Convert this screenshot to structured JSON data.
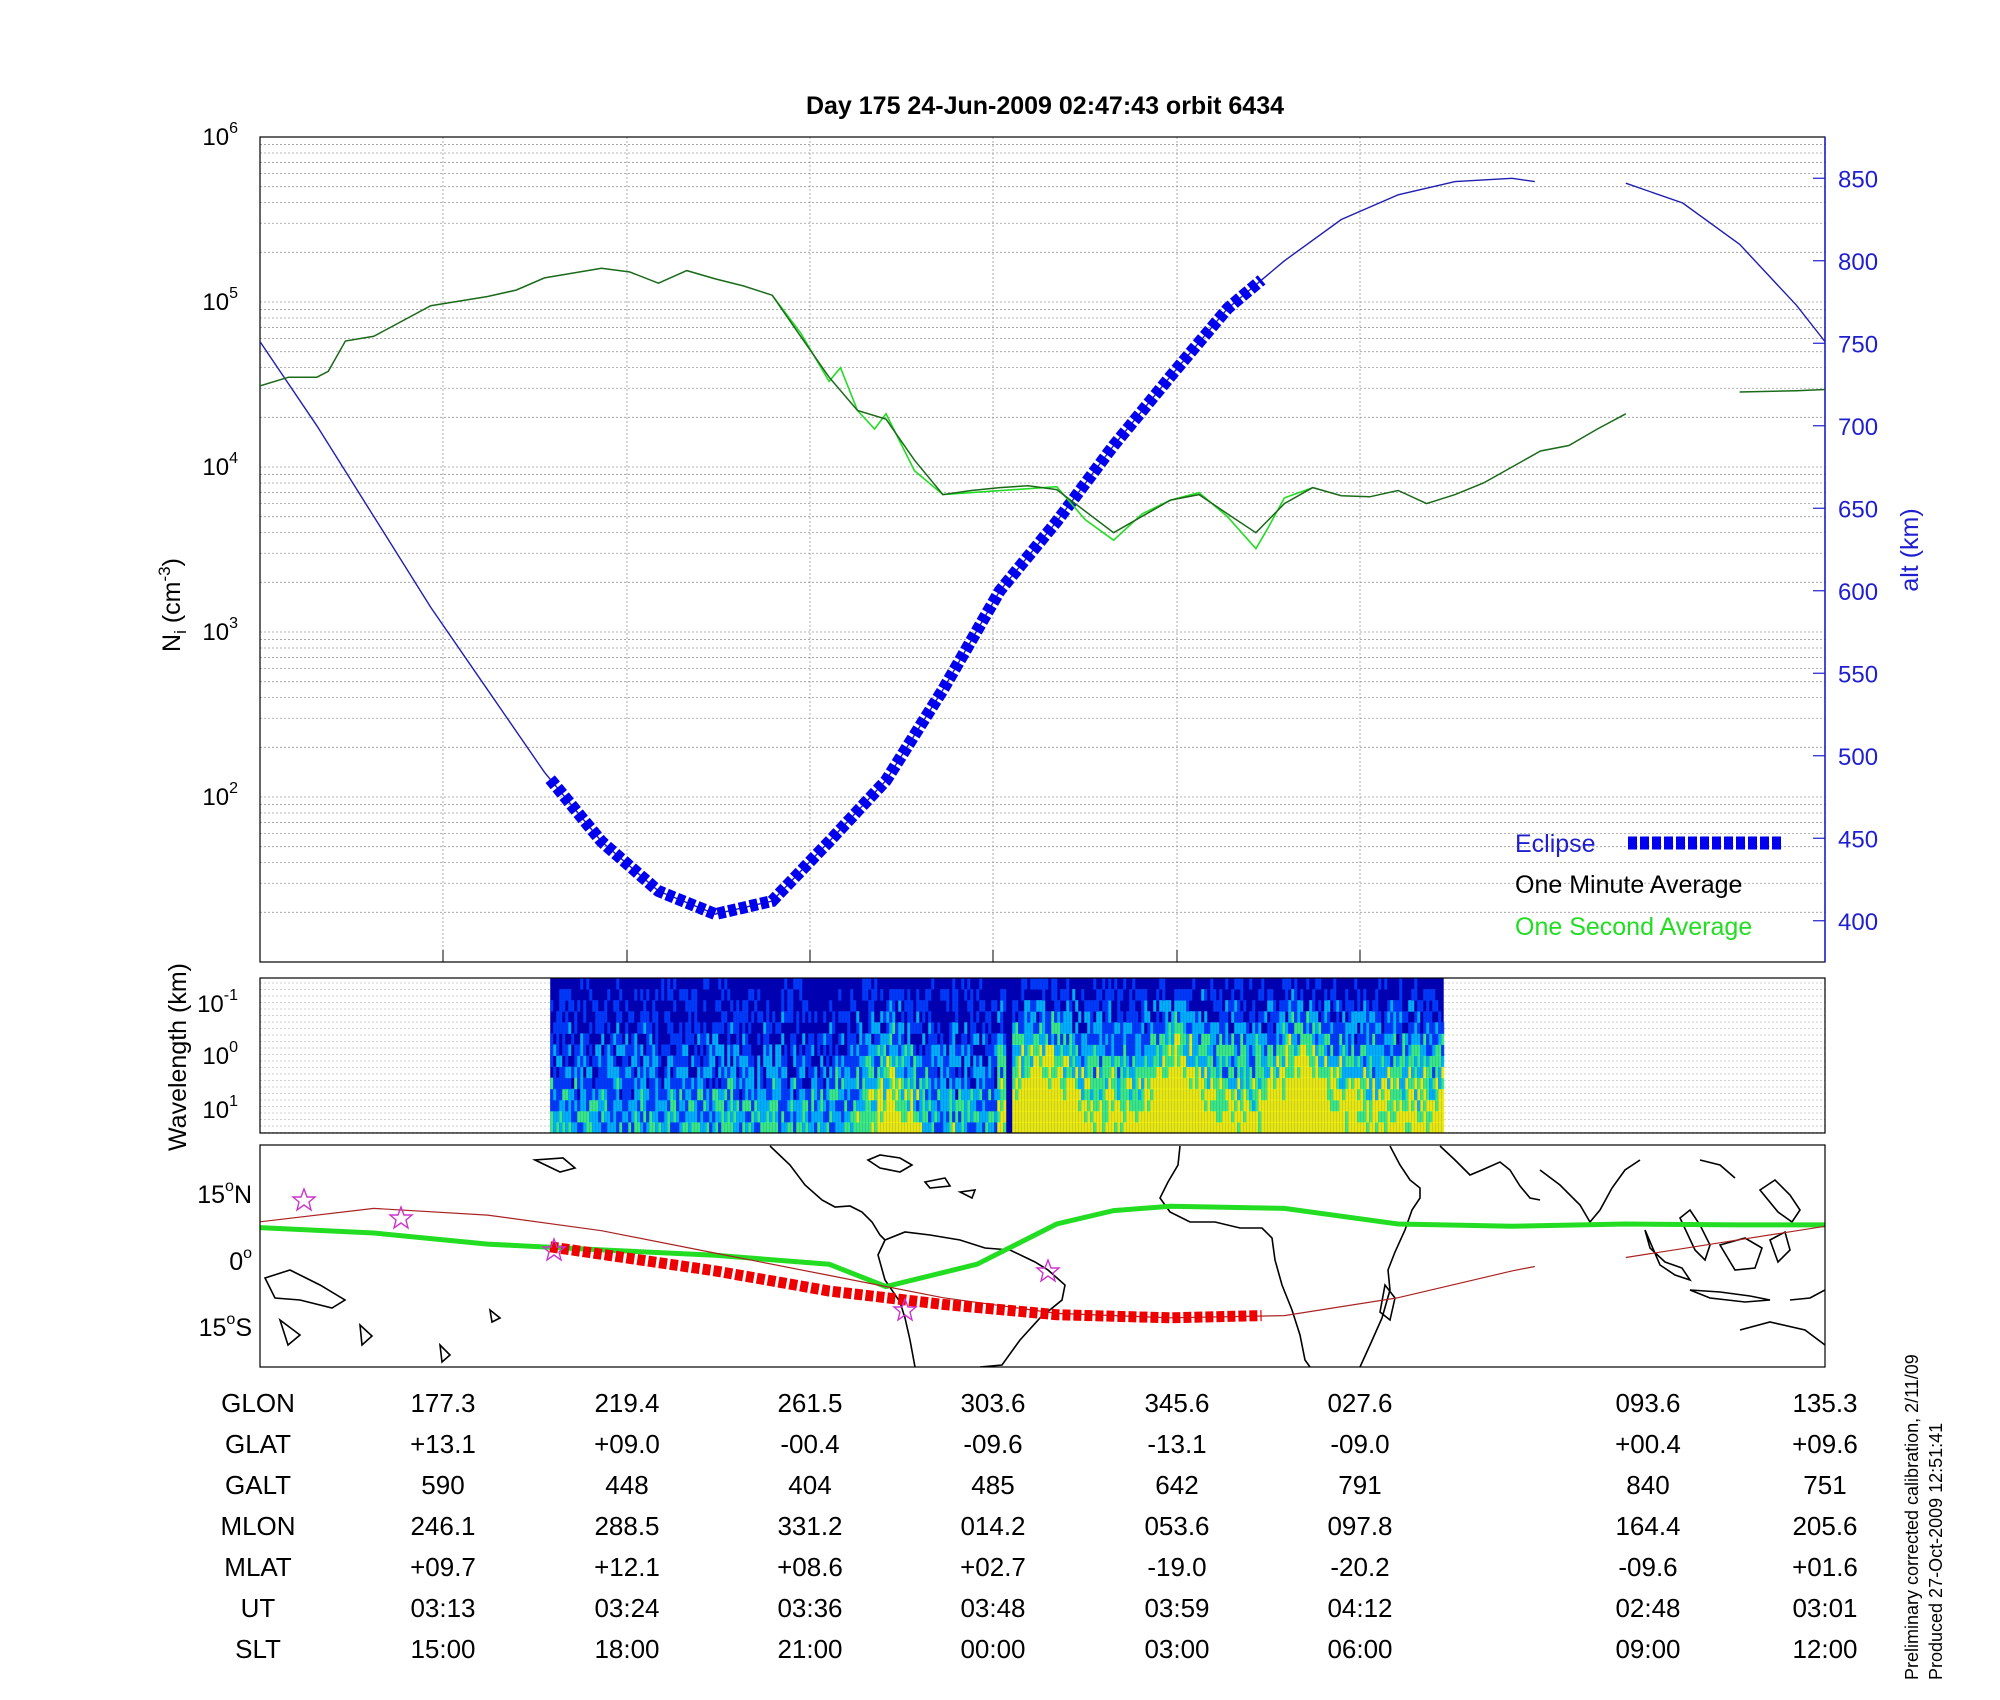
{
  "title": "Day 175  24-Jun-2009 02:47:43   orbit 6434",
  "side_note": [
    "Preliminary corrected calibration, 2/11/09",
    "Produced 27-Oct-2009 12:51:41"
  ],
  "chart_data": [
    {
      "type": "line",
      "panel": "top",
      "y_left_label": "N",
      "y_left_label_sub": "i",
      "y_left_label_unit": "(cm",
      "y_left_label_exp": "-3",
      "y_left_label_close": ")",
      "y_left_scale": "log",
      "y_left_range": [
        10,
        1000000
      ],
      "y_left_ticks": [
        {
          "base": "10",
          "exp": "2",
          "v": 100
        },
        {
          "base": "10",
          "exp": "3",
          "v": 1000
        },
        {
          "base": "10",
          "exp": "4",
          "v": 10000
        },
        {
          "base": "10",
          "exp": "5",
          "v": 100000
        },
        {
          "base": "10",
          "exp": "6",
          "v": 1000000
        }
      ],
      "y_right_label": "alt (km)",
      "y_right_range": [
        375,
        875
      ],
      "y_right_ticks": [
        400,
        450,
        500,
        550,
        600,
        650,
        700,
        750,
        800,
        850
      ],
      "grid": true,
      "legend": {
        "position": "bottom-right",
        "entries": [
          "Eclipse",
          "One Minute Average",
          "One Second Average"
        ]
      },
      "series": [
        {
          "name": "One Minute Average",
          "color": "#1a6a1a",
          "x": [
            0,
            0.25,
            0.5,
            0.6,
            0.75,
            1.0,
            1.5,
            2.0,
            2.25,
            2.5,
            3.0,
            3.25,
            3.5,
            3.75,
            4.0,
            4.25,
            4.5,
            4.75,
            5.0,
            5.25,
            5.5,
            5.75,
            6.0,
            6.25,
            6.5,
            6.75,
            7.0,
            7.5,
            8.0,
            8.25,
            8.5,
            8.75,
            9.0,
            9.25,
            9.5,
            9.75,
            10.0,
            10.25,
            10.5,
            10.75,
            11.0,
            11.25,
            11.5,
            11.75,
            12.0,
            12.5,
            13.0,
            13.5,
            13.75
          ],
          "y": [
            31000,
            35000,
            35000,
            38000,
            58000,
            62000,
            95000,
            108000,
            118000,
            140000,
            160000,
            152000,
            130000,
            155000,
            138000,
            125000,
            110000,
            62000,
            35000,
            22000,
            19500,
            11000,
            6800,
            7200,
            7500,
            7700,
            7300,
            4000,
            6300,
            6800,
            5200,
            4000,
            6000,
            7500,
            6700,
            6600,
            7200,
            6000,
            6800,
            8000,
            10000,
            12500,
            13500,
            17000,
            21000,
            null,
            28500,
            29000,
            29500
          ]
        },
        {
          "name": "One Second Average",
          "color": "#22dd22",
          "x": [
            4.5,
            4.75,
            5.0,
            5.1,
            5.25,
            5.4,
            5.5,
            5.75,
            6.0,
            7.0,
            7.25,
            7.5,
            7.75,
            8.0,
            8.25,
            8.5,
            8.75,
            8.85,
            9.0,
            9.25
          ],
          "y": [
            110000,
            65000,
            33000,
            40000,
            22000,
            17000,
            21000,
            9500,
            6800,
            7600,
            4800,
            3600,
            5200,
            6300,
            7000,
            5000,
            3200,
            4200,
            6500,
            7500
          ]
        },
        {
          "name": "alt",
          "axis": "right",
          "color": "#1f1fb0",
          "x": [
            0,
            0.5,
            1,
            1.5,
            2,
            2.5,
            3,
            3.5,
            4,
            4.5,
            5,
            5.5,
            6,
            6.5,
            7,
            7.5,
            8,
            8.5,
            9,
            9.5,
            10,
            10.5,
            11,
            11.2,
            null,
            12.0,
            12.5,
            13.0,
            13.5,
            13.75
          ],
          "y": [
            751,
            700,
            645,
            590,
            540,
            490,
            448,
            418,
            404,
            412,
            448,
            485,
            540,
            600,
            642,
            688,
            730,
            771,
            800,
            825,
            840,
            848,
            850,
            848,
            null,
            847,
            835,
            810,
            773,
            751
          ]
        },
        {
          "name": "Eclipse",
          "axis": "right",
          "color": "#0000ee",
          "x_range": [
            2.55,
            8.8
          ]
        }
      ]
    },
    {
      "type": "heatmap",
      "panel": "middle",
      "ylabel": "Wavelength (km)",
      "y_ticks": [
        {
          "base": "10",
          "exp": "-1"
        },
        {
          "base": "10",
          "exp": "0"
        },
        {
          "base": "10",
          "exp": "1"
        }
      ],
      "x_range": [
        2.55,
        10.4
      ],
      "colormap": [
        "#0000b0",
        "#0040ff",
        "#00c0ff",
        "#40ff80",
        "#ffff00"
      ]
    },
    {
      "type": "map",
      "panel": "bottom",
      "y_ticks": [
        {
          "deg": "15",
          "hemi": "N"
        },
        {
          "deg": "0",
          "hemi": ""
        },
        {
          "deg": "15",
          "hemi": "S"
        }
      ],
      "series": [
        {
          "name": "geomagnetic track",
          "color": "#22dd22"
        },
        {
          "name": "orbit track",
          "color": "#aa2222"
        },
        {
          "name": "eclipse track",
          "color": "#ee0000"
        }
      ]
    }
  ],
  "table": {
    "rows": [
      {
        "label": "GLON",
        "values": [
          "177.3",
          "219.4",
          "261.5",
          "303.6",
          "345.6",
          "027.6",
          "093.6",
          "135.3"
        ]
      },
      {
        "label": "GLAT",
        "values": [
          "+13.1",
          "+09.0",
          "-00.4",
          "-09.6",
          "-13.1",
          "-09.0",
          "+00.4",
          "+09.6"
        ]
      },
      {
        "label": "GALT",
        "values": [
          "590",
          "448",
          "404",
          "485",
          "642",
          "791",
          "840",
          "751"
        ]
      },
      {
        "label": "MLON",
        "values": [
          "246.1",
          "288.5",
          "331.2",
          "014.2",
          "053.6",
          "097.8",
          "164.4",
          "205.6"
        ]
      },
      {
        "label": "MLAT",
        "values": [
          "+09.7",
          "+12.1",
          "+08.6",
          "+02.7",
          "-19.0",
          "-20.2",
          "-09.6",
          "+01.6"
        ]
      },
      {
        "label": "UT",
        "values": [
          "03:13",
          "03:24",
          "03:36",
          "03:48",
          "03:59",
          "04:12",
          "02:48",
          "03:01"
        ]
      },
      {
        "label": "SLT",
        "values": [
          "15:00",
          "18:00",
          "21:00",
          "00:00",
          "03:00",
          "06:00",
          "09:00",
          "12:00"
        ]
      }
    ]
  }
}
